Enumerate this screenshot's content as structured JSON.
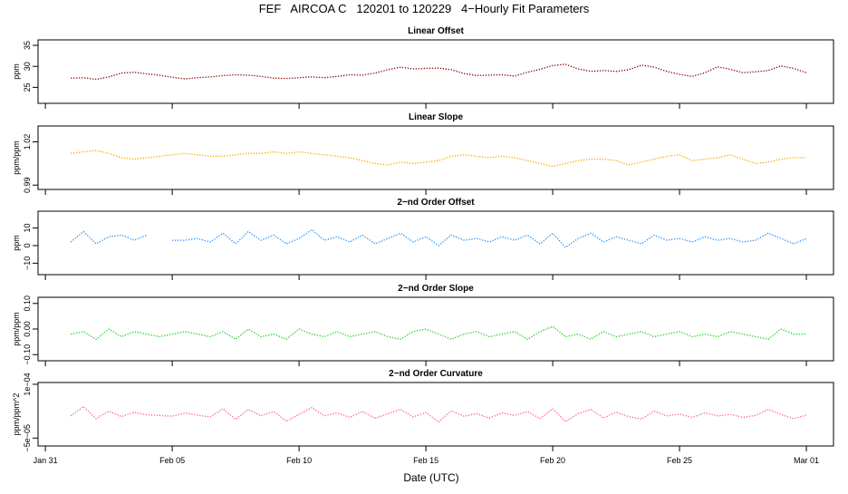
{
  "title": "FEF   AIRCOA C   120201 to 120229   4−Hourly Fit Parameters",
  "x_axis": {
    "label": "Date (UTC)",
    "xlim": [
      -0.29,
      31.07
    ],
    "xticks": [
      {
        "value": 0,
        "label": "Jan 31"
      },
      {
        "value": 5,
        "label": "Feb 05"
      },
      {
        "value": 10,
        "label": "Feb 10"
      },
      {
        "value": 15,
        "label": "Feb 15"
      },
      {
        "value": 20,
        "label": "Feb 20"
      },
      {
        "value": 25,
        "label": "Feb 25"
      },
      {
        "value": 30,
        "label": "Mar 01"
      }
    ]
  },
  "chart_data": [
    {
      "type": "line",
      "title": "Linear Offset",
      "ylabel": "ppm",
      "color": "#8b0000",
      "ylim": [
        21.2,
        36.3
      ],
      "yticks": [
        25,
        30,
        35
      ],
      "x": [
        1,
        1.5,
        2,
        2.5,
        3,
        3.5,
        4,
        4.5,
        5,
        5.5,
        6,
        6.5,
        7,
        7.5,
        8,
        8.5,
        9,
        9.5,
        10,
        10.5,
        11,
        11.5,
        12,
        12.5,
        13,
        13.5,
        14,
        14.5,
        15,
        15.5,
        16,
        16.5,
        17,
        17.5,
        18,
        18.5,
        19,
        19.5,
        20,
        20.5,
        21,
        21.5,
        22,
        22.5,
        23,
        23.5,
        24,
        24.5,
        25,
        25.5,
        26,
        26.5,
        27,
        27.5,
        28,
        28.5,
        29,
        29.5,
        30
      ],
      "values": [
        27.2,
        27.3,
        26.9,
        27.5,
        28.4,
        28.6,
        28.2,
        27.9,
        27.4,
        27.0,
        27.3,
        27.5,
        27.8,
        28.0,
        27.9,
        27.6,
        27.2,
        27.1,
        27.3,
        27.5,
        27.3,
        27.6,
        28.0,
        27.9,
        28.4,
        29.2,
        29.8,
        29.4,
        29.5,
        29.6,
        29.2,
        28.3,
        27.8,
        27.9,
        28.0,
        27.7,
        28.6,
        29.3,
        30.2,
        30.5,
        29.4,
        28.8,
        29.0,
        28.8,
        29.2,
        30.3,
        29.8,
        28.8,
        28.1,
        27.6,
        28.5,
        29.9,
        29.3,
        28.5,
        28.7,
        29.0,
        30.1,
        29.5,
        28.5
      ]
    },
    {
      "type": "line",
      "title": "Linear Slope",
      "ylabel": "ppm/ppm",
      "color": "#ffa500",
      "ylim": [
        0.987,
        1.031
      ],
      "yticks": [
        0.99,
        1.02
      ],
      "x": [
        1,
        1.5,
        2,
        2.5,
        3,
        3.5,
        4,
        4.5,
        5,
        5.5,
        6,
        6.5,
        7,
        7.5,
        8,
        8.5,
        9,
        9.5,
        10,
        10.5,
        11,
        11.5,
        12,
        12.5,
        13,
        13.5,
        14,
        14.5,
        15,
        15.5,
        16,
        16.5,
        17,
        17.5,
        18,
        18.5,
        19,
        19.5,
        20,
        20.5,
        21,
        21.5,
        22,
        22.5,
        23,
        23.5,
        24,
        24.5,
        25,
        25.5,
        26,
        26.5,
        27,
        27.5,
        28,
        28.5,
        29,
        29.5,
        30
      ],
      "values": [
        1.012,
        1.013,
        1.014,
        1.012,
        1.009,
        1.008,
        1.009,
        1.01,
        1.011,
        1.012,
        1.011,
        1.01,
        1.01,
        1.011,
        1.012,
        1.012,
        1.013,
        1.012,
        1.013,
        1.012,
        1.011,
        1.01,
        1.009,
        1.007,
        1.005,
        1.004,
        1.006,
        1.005,
        1.006,
        1.007,
        1.01,
        1.011,
        1.01,
        1.009,
        1.01,
        1.009,
        1.007,
        1.005,
        1.003,
        1.005,
        1.007,
        1.008,
        1.008,
        1.007,
        1.004,
        1.006,
        1.008,
        1.01,
        1.011,
        1.007,
        1.008,
        1.009,
        1.011,
        1.008,
        1.005,
        1.006,
        1.008,
        1.009,
        1.009
      ]
    },
    {
      "type": "line",
      "title": "2−nd Order Offset",
      "ylabel": "ppm",
      "color": "#1e90ff",
      "ylim": [
        -16.5,
        19.5
      ],
      "yticks": [
        {
          "value": -10,
          "label": "−10"
        },
        0,
        10
      ],
      "x": [
        1,
        1.5,
        2,
        2.5,
        3,
        3.5,
        4,
        4.5,
        5,
        5.5,
        6,
        6.5,
        7,
        7.5,
        8,
        8.5,
        9,
        9.5,
        10,
        10.5,
        11,
        11.5,
        12,
        12.5,
        13,
        13.5,
        14,
        14.5,
        15,
        15.5,
        16,
        16.5,
        17,
        17.5,
        18,
        18.5,
        19,
        19.5,
        20,
        20.5,
        21,
        21.5,
        22,
        22.5,
        23,
        23.5,
        24,
        24.5,
        25,
        25.5,
        26,
        26.5,
        27,
        27.5,
        28,
        28.5,
        29,
        29.5,
        30
      ],
      "values": [
        2,
        8,
        1,
        5,
        6,
        3,
        6,
        null,
        3,
        3,
        4,
        2,
        7,
        1,
        8,
        3,
        6,
        1,
        4,
        9,
        3,
        5,
        2,
        6,
        1,
        4,
        7,
        2,
        5,
        0,
        6,
        3,
        4,
        2,
        5,
        3,
        6,
        1,
        7,
        -1,
        4,
        7,
        2,
        5,
        3,
        1,
        6,
        3,
        4,
        2,
        5,
        3,
        4,
        2,
        3,
        7,
        4,
        1,
        4
      ]
    },
    {
      "type": "line",
      "title": "2−nd Order Slope",
      "ylabel": "ppm/ppm",
      "color": "#22cc22",
      "ylim": [
        -0.124,
        0.124
      ],
      "yticks": [
        {
          "value": -0.1,
          "label": "−0.10"
        },
        {
          "value": 0,
          "label": "0.00"
        },
        {
          "value": 0.1,
          "label": "0.10"
        }
      ],
      "x": [
        1,
        1.5,
        2,
        2.5,
        3,
        3.5,
        4,
        4.5,
        5,
        5.5,
        6,
        6.5,
        7,
        7.5,
        8,
        8.5,
        9,
        9.5,
        10,
        10.5,
        11,
        11.5,
        12,
        12.5,
        13,
        13.5,
        14,
        14.5,
        15,
        15.5,
        16,
        16.5,
        17,
        17.5,
        18,
        18.5,
        19,
        19.5,
        20,
        20.5,
        21,
        21.5,
        22,
        22.5,
        23,
        23.5,
        24,
        24.5,
        25,
        25.5,
        26,
        26.5,
        27,
        27.5,
        28,
        28.5,
        29,
        29.5,
        30
      ],
      "values": [
        -0.02,
        -0.01,
        -0.04,
        0.0,
        -0.03,
        -0.01,
        -0.02,
        -0.03,
        -0.02,
        -0.01,
        -0.02,
        -0.03,
        -0.01,
        -0.04,
        0.0,
        -0.03,
        -0.02,
        -0.04,
        0.0,
        -0.02,
        -0.03,
        -0.01,
        -0.03,
        -0.02,
        -0.01,
        -0.03,
        -0.04,
        -0.01,
        0.0,
        -0.02,
        -0.04,
        -0.02,
        -0.01,
        -0.03,
        -0.02,
        -0.01,
        -0.04,
        -0.01,
        0.01,
        -0.03,
        -0.02,
        -0.04,
        -0.01,
        -0.03,
        -0.02,
        -0.01,
        -0.03,
        -0.02,
        -0.01,
        -0.03,
        -0.02,
        -0.03,
        -0.01,
        -0.02,
        -0.03,
        -0.04,
        0.0,
        -0.02,
        -0.02
      ]
    },
    {
      "type": "line",
      "title": "2−nd Order Curvature",
      "ylabel": "ppm/ppm^2",
      "color": "#ff6080",
      "ylim": [
        -7.2e-05,
        0.000105
      ],
      "yticks": [
        {
          "value": -5e-05,
          "label": "−5e−05"
        },
        {
          "value": 0.0001,
          "label": "1e−04"
        }
      ],
      "x": [
        1,
        1.5,
        2,
        2.5,
        3,
        3.5,
        4,
        4.5,
        5,
        5.5,
        6,
        6.5,
        7,
        7.5,
        8,
        8.5,
        9,
        9.5,
        10,
        10.5,
        11,
        11.5,
        12,
        12.5,
        13,
        13.5,
        14,
        14.5,
        15,
        15.5,
        16,
        16.5,
        17,
        17.5,
        18,
        18.5,
        19,
        19.5,
        20,
        20.5,
        21,
        21.5,
        22,
        22.5,
        23,
        23.5,
        24,
        24.5,
        25,
        25.5,
        26,
        26.5,
        27,
        27.5,
        28,
        28.5,
        29,
        29.5,
        30
      ],
      "values": [
        1.2e-05,
        3.8e-05,
        4e-06,
        2.5e-05,
        1e-05,
        2.2e-05,
        1.5e-05,
        1.3e-05,
        1.1e-05,
        2e-05,
        1.4e-05,
        9e-06,
        3.2e-05,
        2e-06,
        3e-05,
        1.2e-05,
        2.4e-05,
        -3e-06,
        1.6e-05,
        3.5e-05,
        1.2e-05,
        2e-05,
        8e-06,
        2.4e-05,
        5e-06,
        1.8e-05,
        3e-05,
        9e-06,
        2.1e-05,
        -5e-06,
        2.6e-05,
        1.1e-05,
        1.8e-05,
        6e-06,
        2e-05,
        1.3e-05,
        2.4e-05,
        4e-06,
        3.2e-05,
        -4e-06,
        1.8e-05,
        3e-05,
        6e-06,
        2.2e-05,
        1e-05,
        3e-06,
        2.5e-05,
        1.2e-05,
        1.7e-05,
        8e-06,
        2e-05,
        1.2e-05,
        1.6e-05,
        8e-06,
        1.3e-05,
        3e-05,
        1.6e-05,
        4e-06,
        1.4e-05
      ]
    }
  ]
}
